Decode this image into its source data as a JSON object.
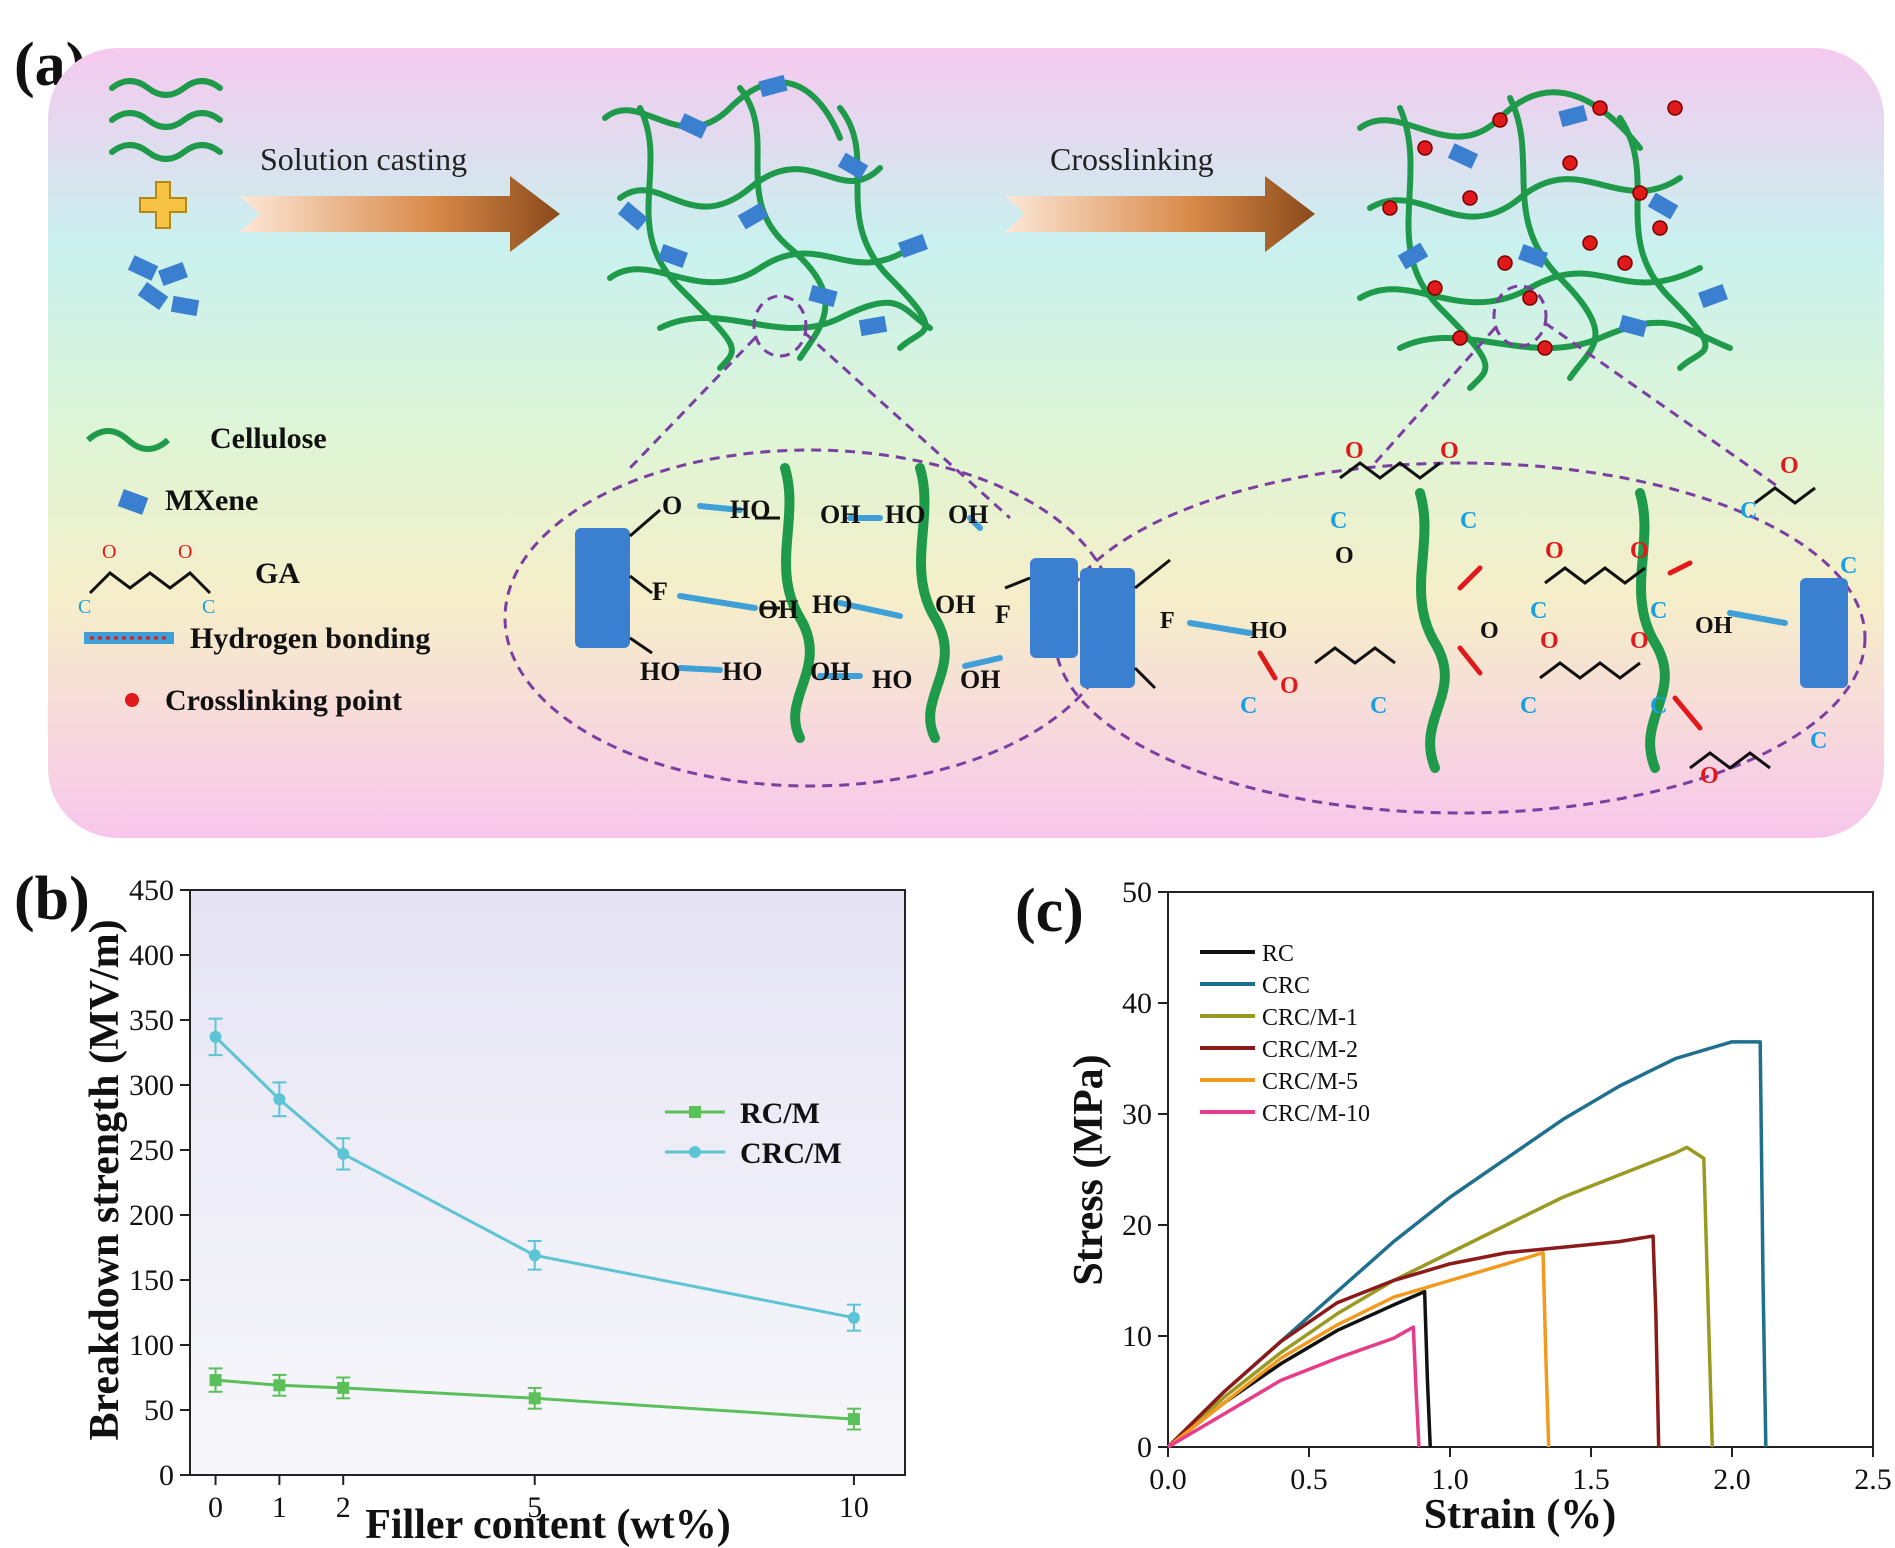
{
  "panel_a": {
    "label": "(a)",
    "step1": "Solution casting",
    "step2": "Crosslinking",
    "legend": [
      {
        "key": "cellulose",
        "text": "Cellulose"
      },
      {
        "key": "mxene",
        "text": "MXene"
      },
      {
        "key": "ga",
        "text": "GA"
      },
      {
        "key": "hbond",
        "text": "Hydrogen bonding"
      },
      {
        "key": "xlink",
        "text": "Crosslinking point"
      }
    ],
    "atom_o": "O",
    "atom_c": "C",
    "atom_f": "F",
    "group_ho": "HO",
    "group_oh": "OH",
    "colors": {
      "cellulose": "#1e9a4a",
      "mxene": "#3b7fd0",
      "crosslink": "#e01a1a",
      "carbon": "#1aa0e0",
      "ellipse": "#7a3fa0"
    }
  },
  "panel_b": {
    "label": "(b)",
    "chart_data": {
      "type": "line",
      "title": "",
      "xlabel": "Filler content (wt%)",
      "ylabel": "Breakdown strength (MV/m)",
      "x": [
        0,
        1,
        2,
        5,
        10
      ],
      "xticks": [
        "0",
        "1",
        "2",
        "5",
        "10"
      ],
      "ylim": [
        0,
        450
      ],
      "yticks": [
        "0",
        "50",
        "100",
        "150",
        "200",
        "250",
        "300",
        "350",
        "400",
        "450"
      ],
      "legend_position": "right-middle",
      "series": [
        {
          "name": "RC/M",
          "values": [
            73,
            69,
            67,
            59,
            43
          ],
          "errors": [
            9,
            8,
            8,
            8,
            8
          ],
          "color": "#5bbf5a"
        },
        {
          "name": "CRC/M",
          "values": [
            337,
            289,
            247,
            169,
            121
          ],
          "errors": [
            14,
            13,
            12,
            11,
            10
          ],
          "color": "#5cc4d4"
        }
      ]
    }
  },
  "panel_c": {
    "label": "(c)",
    "chart_data": {
      "type": "line",
      "title": "",
      "xlabel": "Strain (%)",
      "ylabel": "Stress (MPa)",
      "xlim": [
        0,
        2.5
      ],
      "ylim": [
        0,
        50
      ],
      "xticks": [
        "0.0",
        "0.5",
        "1.0",
        "1.5",
        "2.0",
        "2.5"
      ],
      "yticks": [
        "0",
        "10",
        "20",
        "30",
        "40",
        "50"
      ],
      "legend_position": "top-left",
      "series": [
        {
          "name": "RC",
          "color": "#111111",
          "x": [
            0,
            0.2,
            0.4,
            0.6,
            0.8,
            0.91,
            0.92,
            0.93
          ],
          "y": [
            0,
            4,
            7.5,
            10.5,
            12.8,
            14,
            6,
            0
          ]
        },
        {
          "name": "CRC",
          "color": "#1f6f8e",
          "x": [
            0,
            0.2,
            0.4,
            0.6,
            0.8,
            1.0,
            1.2,
            1.4,
            1.6,
            1.8,
            2.0,
            2.1,
            2.11,
            2.12
          ],
          "y": [
            0,
            5,
            9.5,
            14,
            18.5,
            22.5,
            26,
            29.5,
            32.5,
            35,
            36.5,
            36.5,
            15,
            0
          ]
        },
        {
          "name": "CRC/M-1",
          "color": "#9a9a22",
          "x": [
            0,
            0.2,
            0.4,
            0.6,
            0.8,
            1.0,
            1.2,
            1.4,
            1.6,
            1.8,
            1.84,
            1.9,
            1.93
          ],
          "y": [
            0,
            4.5,
            8.5,
            12,
            15,
            17.5,
            20,
            22.5,
            24.5,
            26.5,
            27,
            26,
            0
          ]
        },
        {
          "name": "CRC/M-2",
          "color": "#8b1a1a",
          "x": [
            0,
            0.2,
            0.4,
            0.6,
            0.8,
            1.0,
            1.2,
            1.4,
            1.6,
            1.72,
            1.73,
            1.74
          ],
          "y": [
            0,
            5,
            9.5,
            13,
            15,
            16.5,
            17.5,
            18,
            18.5,
            19,
            12,
            0
          ]
        },
        {
          "name": "CRC/M-5",
          "color": "#f39a1e",
          "x": [
            0,
            0.2,
            0.4,
            0.6,
            0.8,
            1.0,
            1.2,
            1.33,
            1.34,
            1.35
          ],
          "y": [
            0,
            4,
            8,
            11,
            13.5,
            15,
            16.5,
            17.5,
            8,
            0
          ]
        },
        {
          "name": "CRC/M-10",
          "color": "#e83b8a",
          "x": [
            0,
            0.2,
            0.4,
            0.6,
            0.8,
            0.87,
            0.88,
            0.89
          ],
          "y": [
            0,
            3,
            6,
            8,
            9.8,
            10.8,
            5,
            0
          ]
        }
      ]
    }
  }
}
